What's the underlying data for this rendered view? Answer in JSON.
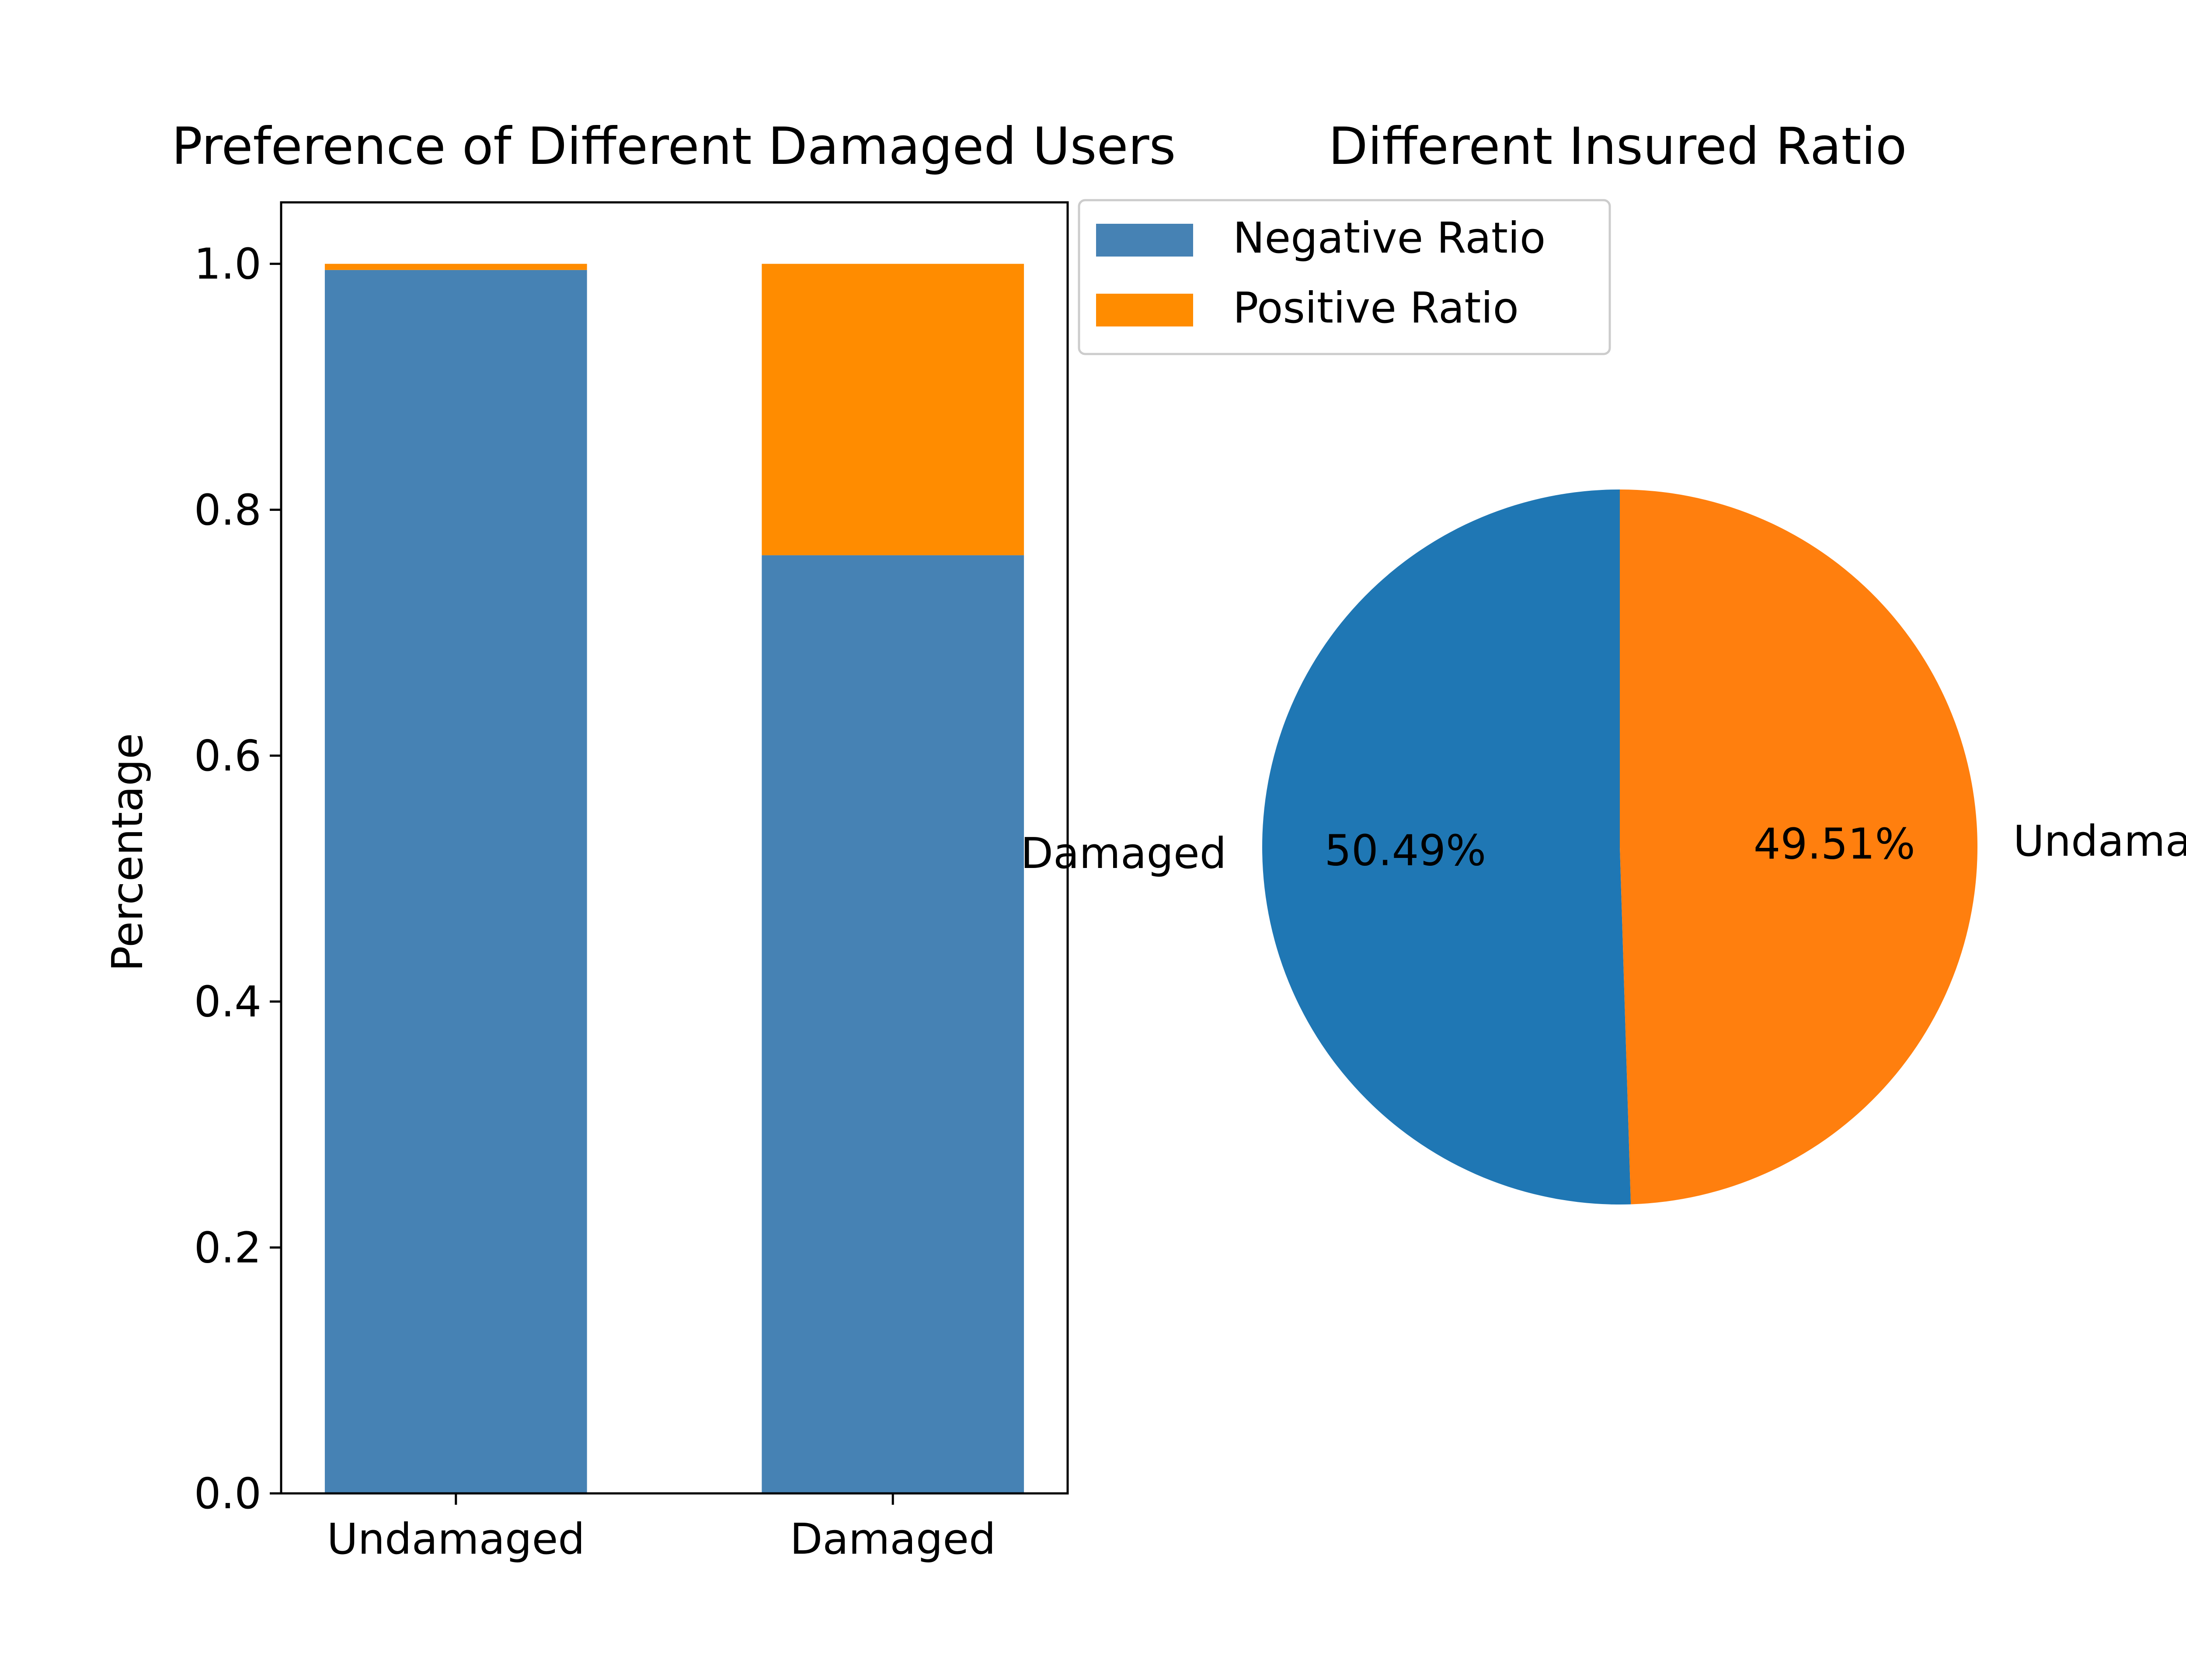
{
  "chart_data": [
    {
      "type": "bar",
      "stacked": true,
      "title": "Preference of Different Damaged Users",
      "xlabel": "",
      "ylabel": "Percentage",
      "categories": [
        "Undamaged",
        "Damaged"
      ],
      "series": [
        {
          "name": "Negative Ratio",
          "values": [
            0.995,
            0.763
          ],
          "color": "#4682b4"
        },
        {
          "name": "Positive Ratio",
          "values": [
            0.005,
            0.237
          ],
          "color": "#ff8c00"
        }
      ],
      "ylim": [
        0,
        1.05
      ],
      "yticks": [
        0.0,
        0.2,
        0.4,
        0.6,
        0.8,
        1.0
      ],
      "ytick_labels": [
        "0.0",
        "0.2",
        "0.4",
        "0.6",
        "0.8",
        "1.0"
      ],
      "grid": false,
      "legend": {
        "placement": "outside-right-top"
      }
    },
    {
      "type": "pie",
      "title": "Different Insured Ratio",
      "labels": [
        "Damaged",
        "Undamaged"
      ],
      "values": [
        50.49,
        49.51
      ],
      "value_labels": [
        "50.49%",
        "49.51%"
      ],
      "colors": [
        "#1f77b4",
        "#ff7f0e"
      ],
      "start_angle_deg": 90,
      "direction": "counterclockwise"
    }
  ]
}
